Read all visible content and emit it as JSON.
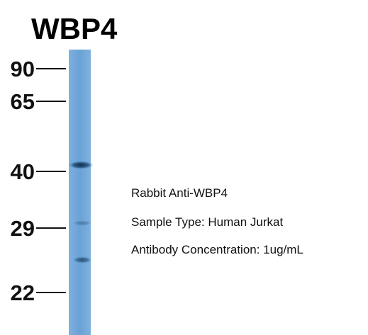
{
  "title": "WBP4",
  "markers": [
    "90",
    "65",
    "40",
    "29",
    "22"
  ],
  "annotations": [
    "Rabbit Anti-WBP4",
    "Sample Type: Human Jurkat",
    "Antibody Concentration: 1ug/mL"
  ]
}
